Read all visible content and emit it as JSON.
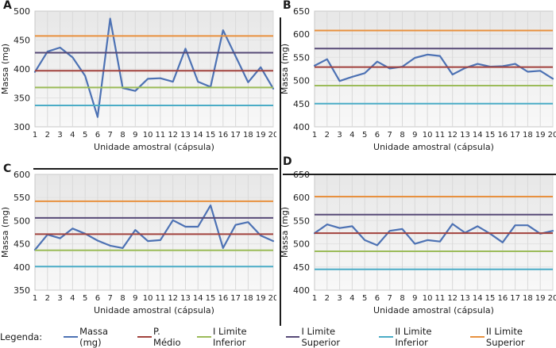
{
  "figure": {
    "ylabel": "Massa (mg)",
    "xlabel": "Unidade amostral (cápsula)"
  },
  "colors": {
    "massa": "#4d72b4",
    "p_medio": "#a2423d",
    "l1_inferior": "#9bbb59",
    "l1_superior": "#574a77",
    "l2_inferior": "#4bacc6",
    "l2_superior": "#e8913f",
    "grid": "#d9d9d9",
    "plot_border": "#c8c8c8",
    "divider": "#1c1c1c"
  },
  "legend": {
    "prefix": "Legenda:",
    "items": [
      {
        "key": "massa",
        "label": "Massa (mg)"
      },
      {
        "key": "p_medio",
        "label": "P. Médio"
      },
      {
        "key": "l1_inferior",
        "label": "I Limite Inferior"
      },
      {
        "key": "l1_superior",
        "label": "I Limite Superior"
      },
      {
        "key": "l2_inferior",
        "label": "II Limite Inferior"
      },
      {
        "key": "l2_superior",
        "label": "II Limite Superior"
      }
    ]
  },
  "chart_data": [
    {
      "type": "line",
      "panel": "A",
      "xlabel": "Unidade amostral (cápsula)",
      "ylabel": "Massa (mg)",
      "x": [
        1,
        2,
        3,
        4,
        5,
        6,
        7,
        8,
        9,
        10,
        11,
        12,
        13,
        14,
        15,
        16,
        17,
        18,
        19,
        20
      ],
      "ylim": [
        300,
        500
      ],
      "yticks": [
        300,
        350,
        400,
        450,
        500
      ],
      "grid": true,
      "series": [
        {
          "name": "Massa (mg)",
          "key": "massa",
          "values": [
            395,
            430,
            437,
            420,
            388,
            317,
            487,
            367,
            362,
            383,
            384,
            378,
            435,
            378,
            369,
            467,
            422,
            377,
            403,
            366
          ]
        },
        {
          "name": "P. Médio",
          "key": "p_medio",
          "constant": 397
        },
        {
          "name": "I Limite Inferior",
          "key": "l1_inferior",
          "constant": 368
        },
        {
          "name": "I Limite Superior",
          "key": "l1_superior",
          "constant": 428
        },
        {
          "name": "II Limite Inferior",
          "key": "l2_inferior",
          "constant": 337
        },
        {
          "name": "II Limite Superior",
          "key": "l2_superior",
          "constant": 457
        }
      ]
    },
    {
      "type": "line",
      "panel": "B",
      "xlabel": "Unidade amostral (cápsula)",
      "ylabel": "Massa (mg)",
      "x": [
        1,
        2,
        3,
        4,
        5,
        6,
        7,
        8,
        9,
        10,
        11,
        12,
        13,
        14,
        15,
        16,
        17,
        18,
        19,
        20
      ],
      "ylim": [
        400,
        650
      ],
      "yticks": [
        400,
        450,
        500,
        550,
        600,
        650
      ],
      "grid": true,
      "series": [
        {
          "name": "Massa (mg)",
          "key": "massa",
          "values": [
            532,
            546,
            499,
            508,
            516,
            541,
            526,
            530,
            549,
            556,
            553,
            513,
            527,
            536,
            530,
            531,
            536,
            519,
            521,
            504
          ]
        },
        {
          "name": "P. Médio",
          "key": "p_medio",
          "constant": 529
        },
        {
          "name": "I Limite Inferior",
          "key": "l1_inferior",
          "constant": 489
        },
        {
          "name": "I Limite Superior",
          "key": "l1_superior",
          "constant": 569
        },
        {
          "name": "II Limite Inferior",
          "key": "l2_inferior",
          "constant": 450
        },
        {
          "name": "II Limite Superior",
          "key": "l2_superior",
          "constant": 608
        }
      ]
    },
    {
      "type": "line",
      "panel": "C",
      "xlabel": "Unidade amostral (cápsula)",
      "ylabel": "Massa (mg)",
      "x": [
        1,
        2,
        3,
        4,
        5,
        6,
        7,
        8,
        9,
        10,
        11,
        12,
        13,
        14,
        15,
        16,
        17,
        18,
        19,
        20
      ],
      "ylim": [
        350,
        600
      ],
      "yticks": [
        350,
        400,
        450,
        500,
        550,
        600
      ],
      "grid": true,
      "series": [
        {
          "name": "Massa (mg)",
          "key": "massa",
          "values": [
            437,
            470,
            462,
            483,
            472,
            457,
            446,
            441,
            480,
            456,
            458,
            501,
            487,
            487,
            533,
            441,
            491,
            497,
            468,
            456
          ]
        },
        {
          "name": "P. Médio",
          "key": "p_medio",
          "constant": 471
        },
        {
          "name": "I Limite Inferior",
          "key": "l1_inferior",
          "constant": 436
        },
        {
          "name": "I Limite Superior",
          "key": "l1_superior",
          "constant": 506
        },
        {
          "name": "II Limite Inferior",
          "key": "l2_inferior",
          "constant": 401
        },
        {
          "name": "II Limite Superior",
          "key": "l2_superior",
          "constant": 542
        }
      ]
    },
    {
      "type": "line",
      "panel": "D",
      "xlabel": "Unidade amostral (cápsula)",
      "ylabel": "Massa (mg)",
      "x": [
        1,
        2,
        3,
        4,
        5,
        6,
        7,
        8,
        9,
        10,
        11,
        12,
        13,
        14,
        15,
        16,
        17,
        18,
        19,
        20
      ],
      "ylim": [
        400,
        650
      ],
      "yticks": [
        400,
        450,
        500,
        550,
        600,
        650
      ],
      "grid": true,
      "series": [
        {
          "name": "Massa (mg)",
          "key": "massa",
          "values": [
            523,
            542,
            534,
            538,
            508,
            497,
            528,
            532,
            500,
            508,
            505,
            543,
            524,
            538,
            522,
            503,
            540,
            540,
            522,
            528
          ]
        },
        {
          "name": "P. Médio",
          "key": "p_medio",
          "constant": 523
        },
        {
          "name": "I Limite Inferior",
          "key": "l1_inferior",
          "constant": 484
        },
        {
          "name": "I Limite Superior",
          "key": "l1_superior",
          "constant": 563
        },
        {
          "name": "II Limite Inferior",
          "key": "l2_inferior",
          "constant": 445
        },
        {
          "name": "II Limite Superior",
          "key": "l2_superior",
          "constant": 602
        }
      ]
    }
  ]
}
